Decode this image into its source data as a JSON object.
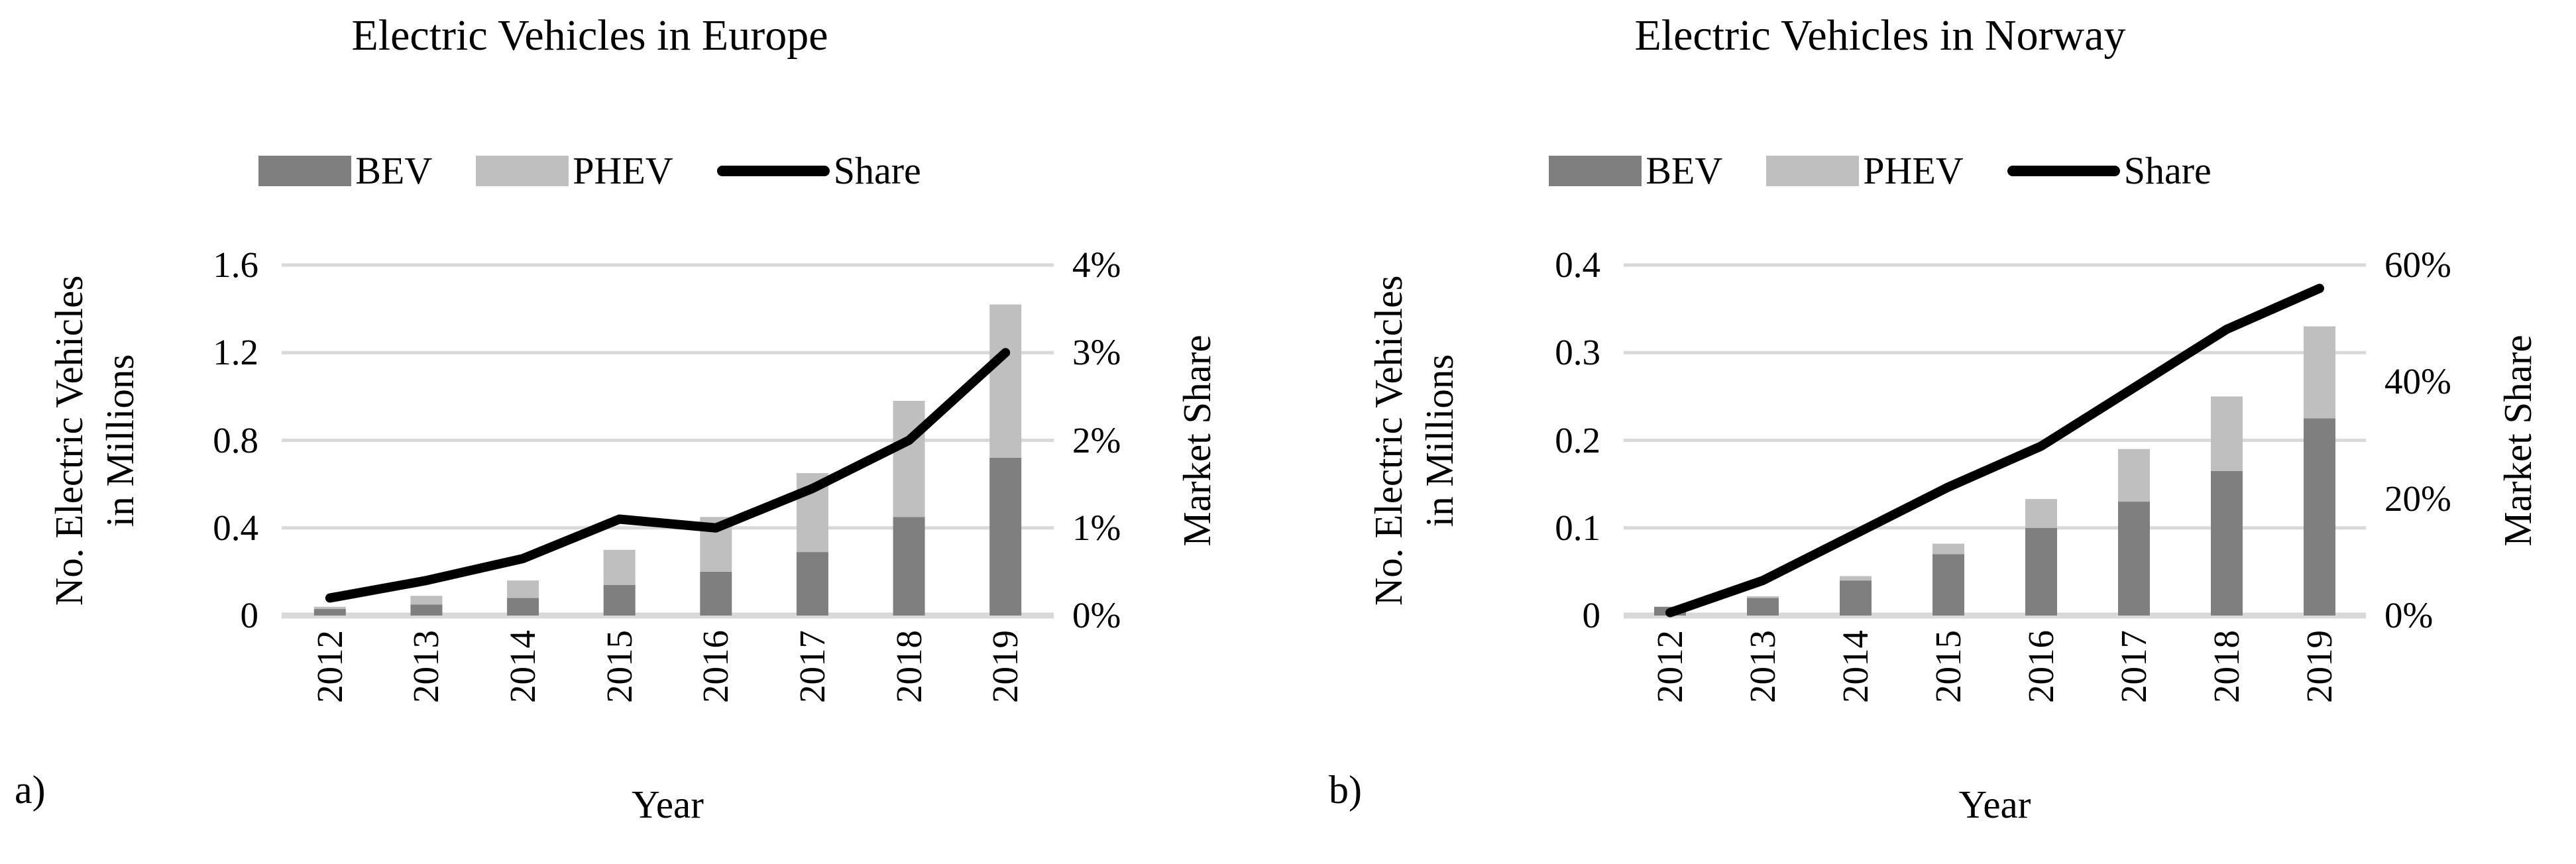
{
  "colors": {
    "bev_bar": "#7f7f7f",
    "phev_bar": "#bfbfbf",
    "share_line": "#000000",
    "gridline": "#d9d9d9",
    "text": "#000000",
    "background": "#ffffff"
  },
  "figure": {
    "panels": [
      {
        "corner_label": "a)",
        "title": "Electric Vehicles in Europe",
        "legend": [
          "BEV",
          "PHEV",
          "Share"
        ],
        "y_axis_title_line1": "No. Electric Vehicles",
        "y_axis_title_line2": "in Millions",
        "y2_axis_title": "Market Share",
        "x_axis_title": "Year",
        "chart_data": {
          "type": "bar+line",
          "title": "Electric Vehicles in Europe",
          "categories": [
            "2012",
            "2013",
            "2014",
            "2015",
            "2016",
            "2017",
            "2018",
            "2019"
          ],
          "series": [
            {
              "name": "BEV",
              "type": "bar",
              "stacked": true,
              "values": [
                0.03,
                0.05,
                0.08,
                0.14,
                0.2,
                0.29,
                0.45,
                0.72
              ]
            },
            {
              "name": "PHEV",
              "type": "bar",
              "stacked": true,
              "values": [
                0.01,
                0.04,
                0.08,
                0.16,
                0.25,
                0.36,
                0.53,
                0.7
              ]
            },
            {
              "name": "Share",
              "type": "line",
              "axis": "right",
              "values": [
                0.2,
                0.4,
                0.65,
                1.1,
                1.0,
                1.45,
                2.0,
                3.0
              ]
            }
          ],
          "xlabel": "Year",
          "ylabel_left": "No. Electric Vehicles in Millions",
          "ylabel_right": "Market Share",
          "y_left": {
            "min": 0,
            "max": 1.6,
            "tick_labels_top_to_bottom": [
              "1.6",
              "1.2",
              "0.8",
              "0.4",
              "0"
            ]
          },
          "y_right": {
            "min": 0,
            "max": 4,
            "tick_labels_top_to_bottom": [
              "4%",
              "3%",
              "2%",
              "1%",
              "0%"
            ]
          },
          "grid": "horizontal",
          "legend_position": "top"
        }
      },
      {
        "corner_label": "b)",
        "title": "Electric Vehicles in Norway",
        "legend": [
          "BEV",
          "PHEV",
          "Share"
        ],
        "y_axis_title_line1": "No. Electric Vehicles",
        "y_axis_title_line2": "in Millions",
        "y2_axis_title": "Market Share",
        "x_axis_title": "Year",
        "chart_data": {
          "type": "bar+line",
          "title": "Electric Vehicles in Norway",
          "categories": [
            "2012",
            "2013",
            "2014",
            "2015",
            "2016",
            "2017",
            "2018",
            "2019"
          ],
          "series": [
            {
              "name": "BEV",
              "type": "bar",
              "stacked": true,
              "values": [
                0.01,
                0.02,
                0.04,
                0.07,
                0.1,
                0.13,
                0.165,
                0.225
              ]
            },
            {
              "name": "PHEV",
              "type": "bar",
              "stacked": true,
              "values": [
                0.0,
                0.002,
                0.005,
                0.012,
                0.033,
                0.06,
                0.085,
                0.105
              ]
            },
            {
              "name": "Share",
              "type": "line",
              "axis": "right",
              "values": [
                0.5,
                6,
                14,
                22,
                29,
                39,
                49,
                56
              ]
            }
          ],
          "xlabel": "Year",
          "ylabel_left": "No. Electric Vehicles in Millions",
          "ylabel_right": "Market Share",
          "y_left": {
            "min": 0,
            "max": 0.4,
            "tick_labels_top_to_bottom": [
              "0.4",
              "0.3",
              "0.2",
              "0.1",
              "0"
            ]
          },
          "y_right": {
            "min": 0,
            "max": 60,
            "tick_labels_top_to_bottom": [
              "60%",
              "40%",
              "20%",
              "0%"
            ]
          },
          "grid": "horizontal",
          "legend_position": "top"
        }
      }
    ]
  }
}
